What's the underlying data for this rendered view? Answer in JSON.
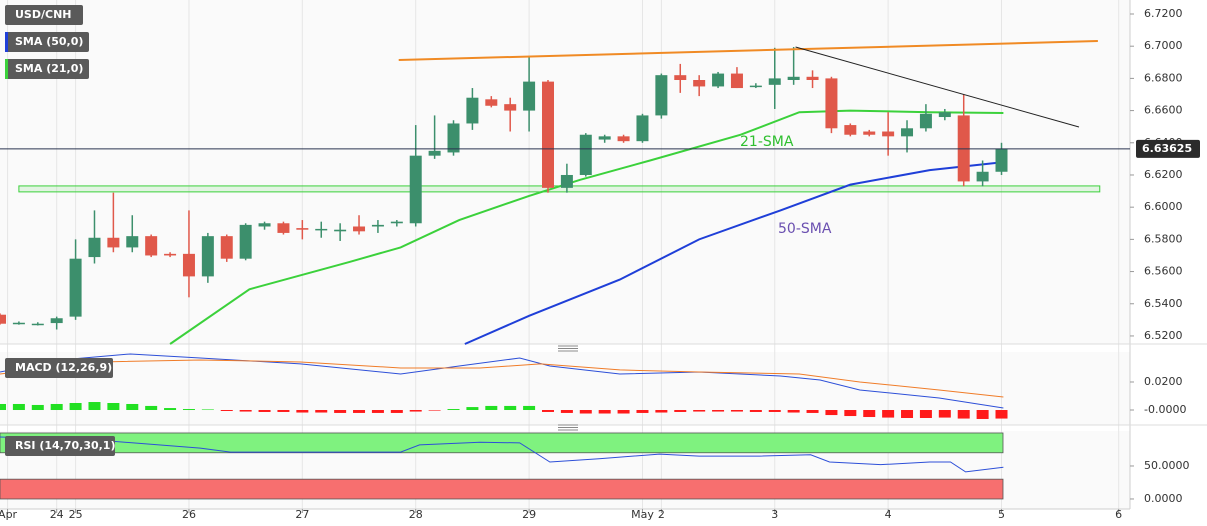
{
  "chart_data": [
    {
      "type": "candlestick",
      "title": "USD/CNH",
      "up_color": "#3c8f6c",
      "down_color": "#e0584a",
      "xlim": [
        0,
        59.8
      ],
      "ylim": [
        6.515,
        6.7287
      ],
      "yticks": [
        {
          "value": 6.52,
          "label": "6.5200"
        },
        {
          "value": 6.54,
          "label": "6.5400"
        },
        {
          "value": 6.56,
          "label": "6.5600"
        },
        {
          "value": 6.58,
          "label": "6.5800"
        },
        {
          "value": 6.6,
          "label": "6.6000"
        },
        {
          "value": 6.62,
          "label": "6.6200"
        },
        {
          "value": 6.64,
          "label": "6.6400"
        },
        {
          "value": 6.66,
          "label": "6.6600"
        },
        {
          "value": 6.68,
          "label": "6.6800"
        },
        {
          "value": 6.7,
          "label": "6.7000"
        },
        {
          "value": 6.72,
          "label": "6.7200"
        }
      ],
      "x": [
        0,
        1,
        2,
        3,
        4,
        5,
        6,
        7,
        8,
        9,
        10,
        11,
        12,
        13,
        14,
        15,
        16,
        17,
        18,
        19,
        20,
        21,
        22,
        23,
        24,
        25,
        26,
        27,
        28,
        29,
        30,
        31,
        32,
        33,
        34,
        35,
        36,
        37,
        38,
        39,
        40,
        41,
        42,
        43,
        44,
        45,
        46,
        47,
        48,
        49,
        50,
        51,
        52,
        53
      ],
      "open": [
        6.5332,
        6.528,
        6.5272,
        6.528,
        6.532,
        6.569,
        6.581,
        6.575,
        6.582,
        6.571,
        6.571,
        6.557,
        6.582,
        6.568,
        6.588,
        6.59,
        6.587,
        6.586,
        6.585,
        6.588,
        6.588,
        6.59,
        6.59,
        6.632,
        6.634,
        6.652,
        6.667,
        6.664,
        6.66,
        6.678,
        6.612,
        6.62,
        6.642,
        6.644,
        6.641,
        6.657,
        6.682,
        6.679,
        6.675,
        6.683,
        6.675,
        6.676,
        6.679,
        6.681,
        6.68,
        6.651,
        6.647,
        6.647,
        6.644,
        6.649,
        6.656,
        6.657,
        6.616,
        6.622
      ],
      "high": [
        6.534,
        6.529,
        6.5285,
        6.532,
        6.58,
        6.598,
        6.609,
        6.595,
        6.583,
        6.572,
        6.598,
        6.584,
        6.583,
        6.59,
        6.591,
        6.591,
        6.592,
        6.591,
        6.59,
        6.595,
        6.592,
        6.592,
        6.651,
        6.657,
        6.654,
        6.674,
        6.669,
        6.668,
        6.694,
        6.679,
        6.627,
        6.646,
        6.645,
        6.645,
        6.658,
        6.683,
        6.689,
        6.682,
        6.684,
        6.687,
        6.677,
        6.699,
        6.6995,
        6.685,
        6.681,
        6.652,
        6.648,
        6.659,
        6.654,
        6.664,
        6.661,
        6.67,
        6.629,
        6.64
      ],
      "low": [
        6.527,
        6.527,
        6.5265,
        6.524,
        6.53,
        6.565,
        6.572,
        6.572,
        6.569,
        6.569,
        6.544,
        6.553,
        6.566,
        6.567,
        6.586,
        6.583,
        6.58,
        6.581,
        6.579,
        6.583,
        6.584,
        6.588,
        6.588,
        6.63,
        6.632,
        6.648,
        6.662,
        6.647,
        6.647,
        6.609,
        6.609,
        6.619,
        6.64,
        6.64,
        6.64,
        6.655,
        6.671,
        6.669,
        6.674,
        6.674,
        6.674,
        6.661,
        6.676,
        6.674,
        6.646,
        6.644,
        6.644,
        6.632,
        6.634,
        6.647,
        6.654,
        6.613,
        6.613,
        6.62
      ],
      "close": [
        6.5276,
        6.5282,
        6.5276,
        6.531,
        6.568,
        6.581,
        6.575,
        6.582,
        6.57,
        6.57,
        6.557,
        6.582,
        6.568,
        6.589,
        6.59,
        6.584,
        6.586,
        6.5865,
        6.586,
        6.585,
        6.589,
        6.591,
        6.632,
        6.635,
        6.652,
        6.668,
        6.663,
        6.66,
        6.678,
        6.612,
        6.62,
        6.645,
        6.644,
        6.641,
        6.657,
        6.682,
        6.679,
        6.675,
        6.683,
        6.674,
        6.6755,
        6.68,
        6.681,
        6.679,
        6.649,
        6.645,
        6.645,
        6.644,
        6.649,
        6.658,
        6.659,
        6.616,
        6.622,
        6.63625
      ],
      "series": [
        {
          "name": "SMA (50,0)",
          "color": "#1f3fd8",
          "x": [
            24.6,
            28.0,
            32.8,
            37.0,
            41.3,
            45.0,
            49.2,
            53.1
          ],
          "values": [
            6.515,
            6.5325,
            6.555,
            6.58,
            6.598,
            6.614,
            6.623,
            6.628
          ]
        },
        {
          "name": "SMA (21,0)",
          "color": "#3bd13b",
          "x": [
            9.0,
            13.2,
            18.5,
            21.2,
            24.3,
            28.0,
            30.7,
            34.4,
            39.2,
            42.3,
            45.0,
            49.2,
            53.1
          ],
          "values": [
            6.515,
            6.549,
            6.566,
            6.575,
            6.592,
            6.607,
            6.617,
            6.629,
            6.645,
            6.659,
            6.66,
            6.659,
            6.6585
          ]
        }
      ],
      "trendlines": [
        {
          "color": "#f08a24",
          "x": [
            21.1,
            58.1
          ],
          "values": [
            6.6914,
            6.7032
          ]
        },
        {
          "color": "#222222",
          "x": [
            42.1,
            57.1
          ],
          "values": [
            6.6995,
            6.6498
          ]
        }
      ],
      "zone": {
        "x": [
          1.0,
          58.2
        ],
        "values": [
          6.6095,
          6.6132
        ],
        "color": "#3bd13b"
      },
      "current_price": 6.63625,
      "annotations": [
        "21-SMA",
        "50-SMA"
      ],
      "annotation_colors": [
        "#2fbf2f",
        "#6a4fb0"
      ]
    },
    {
      "type": "macd",
      "title": "MACD (12,26,9)",
      "xlim": [
        0,
        59.8
      ],
      "ylim": [
        -0.0107,
        0.0414
      ],
      "yticks": [
        {
          "value": 0.02,
          "label": "0.0200"
        },
        {
          "value": 0,
          "label": "-0.0000"
        }
      ],
      "series": [
        {
          "color": "#2d4fd8",
          "x": [
            0,
            3.2,
            6.9,
            10.6,
            15.9,
            21.2,
            24.3,
            27.5,
            29.1,
            32.8,
            37.0,
            41.3,
            43.4,
            45.5,
            49.7,
            53.1
          ],
          "values": [
            0.0271,
            0.0357,
            0.04,
            0.0371,
            0.0329,
            0.0257,
            0.0314,
            0.0371,
            0.0314,
            0.0257,
            0.0271,
            0.0243,
            0.0214,
            0.0143,
            0.0086,
            0.0014
          ]
        },
        {
          "color": "#f07c28",
          "x": [
            0,
            5.3,
            10.6,
            15.9,
            21.2,
            25.4,
            28.6,
            32.8,
            37.0,
            42.3,
            45.5,
            49.7,
            53.1
          ],
          "values": [
            0.0257,
            0.0343,
            0.0357,
            0.0343,
            0.03,
            0.03,
            0.0329,
            0.0286,
            0.0271,
            0.0257,
            0.02,
            0.0143,
            0.0093
          ]
        }
      ],
      "histogram": {
        "up_color": "#22e022",
        "down_color": "#ff1a1a",
        "values": [
          0.0043,
          0.0043,
          0.0036,
          0.0043,
          0.005,
          0.0057,
          0.005,
          0.0043,
          0.0029,
          0.0014,
          0.0007,
          0.0004,
          -0.0007,
          -0.0011,
          -0.0014,
          -0.0014,
          -0.0018,
          -0.0018,
          -0.0021,
          -0.0021,
          -0.0021,
          -0.0021,
          -0.0011,
          -0.0004,
          0.0007,
          0.0021,
          0.0029,
          0.0029,
          0.0029,
          -0.0014,
          -0.0021,
          -0.0025,
          -0.0025,
          -0.0025,
          -0.0021,
          -0.0018,
          -0.0014,
          -0.0011,
          -0.0011,
          -0.0011,
          -0.0014,
          -0.0014,
          -0.0018,
          -0.0021,
          -0.0036,
          -0.0043,
          -0.005,
          -0.0054,
          -0.0057,
          -0.0057,
          -0.0054,
          -0.0061,
          -0.0064,
          -0.0061
        ]
      }
    },
    {
      "type": "rsi",
      "title": "RSI (14,70,30,1)",
      "xlim": [
        0,
        59.8
      ],
      "ylim": [
        -15.2,
        103
      ],
      "yticks": [
        {
          "value": 50,
          "label": "50.0000"
        },
        {
          "value": 0,
          "label": "0.0000"
        }
      ],
      "overbought": 70,
      "oversold": 30,
      "overbought_color": "#7ff27f",
      "oversold_color": "#f76f6f",
      "xticks": [
        {
          "value": 0.4,
          "label": "Apr"
        },
        {
          "value": 3,
          "label": "24"
        },
        {
          "value": 4,
          "label": "25"
        },
        {
          "value": 10,
          "label": "26"
        },
        {
          "value": 16,
          "label": "27"
        },
        {
          "value": 22,
          "label": "28"
        },
        {
          "value": 28,
          "label": "29"
        },
        {
          "value": 34,
          "label": "May"
        },
        {
          "value": 35,
          "label": "2"
        },
        {
          "value": 41,
          "label": "3"
        },
        {
          "value": 47,
          "label": "4"
        },
        {
          "value": 53,
          "label": "5"
        },
        {
          "value": 59.2,
          "label": "6"
        }
      ],
      "series": [
        {
          "color": "#2d4fd8",
          "x": [
            0,
            5.3,
            10.6,
            12.2,
            15.9,
            21.2,
            22.2,
            25.4,
            27.5,
            29.1,
            31.7,
            34.9,
            37.0,
            40.2,
            42.9,
            43.9,
            46.6,
            49.2,
            50.3,
            51.1,
            53.1
          ],
          "values": [
            94,
            89,
            77,
            71,
            71,
            71,
            82,
            86,
            85,
            56,
            61,
            68,
            65,
            65,
            67,
            56,
            52,
            56,
            56,
            41,
            48
          ]
        }
      ]
    }
  ]
}
